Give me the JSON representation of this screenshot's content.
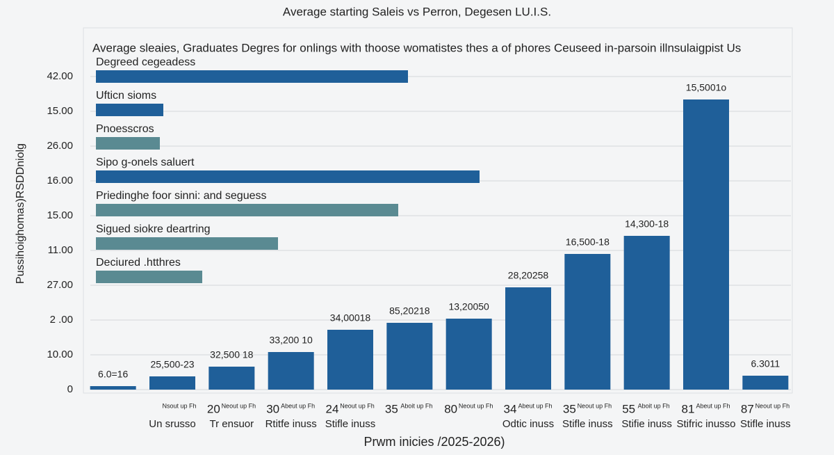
{
  "chart_data": [
    {
      "type": "bar",
      "title": "Average starting Saleis vs Perron, Degesen LU.I.S.",
      "subtitle": "Average sleaies, Graduates Degres for onlings with thoose womatistes thes a of phores Ceuseed in-parsoin illnsulaigpist Us",
      "y_label": "Pussihoighomas)RSDDniolg",
      "x_label": "Prwm inicies /2025-2026)",
      "categories": [
        null,
        "Un srusso",
        "Tr ensuor",
        "Rtitfe inuss",
        "Stifle inuss",
        null,
        null,
        "Odtic inuss",
        "Stifle inuss",
        "Stifie inuss",
        "Stifric inusso",
        "Stifle inuss"
      ],
      "x_tick_numbers": [
        null,
        null,
        "20",
        "30",
        "24",
        "35",
        "80",
        "34",
        "35",
        "55",
        "81",
        "87"
      ],
      "x_tick_notes": [
        null,
        "Nsout up Fh",
        "Neout up Fh",
        "Abeut up Fh",
        "Neout up Fh",
        "Aboit up Fh",
        "Neout up Fh",
        "Abeut up Fh",
        "Neout up Fh",
        "Aboit up Fh",
        "Abeut up Fh",
        "Neout up Fh"
      ],
      "values": [
        0.1,
        0.38,
        0.66,
        1.08,
        1.72,
        1.92,
        2.04,
        2.94,
        3.9,
        4.42,
        8.34,
        0.4
      ],
      "annotations": [
        "6.0=16",
        "25,500-23",
        "32,500 18",
        "33,200 10",
        "34,00018",
        "85,20218",
        "13,20050",
        "28,20258",
        "16,500-18",
        "14,300-18",
        "15,5001o",
        "6.3011"
      ],
      "color": "#1f5f99",
      "ylim": [
        0,
        9
      ],
      "yticks": [
        {
          "value": 0,
          "label": "0"
        },
        {
          "value": 1,
          "label": "10.00"
        },
        {
          "value": 2,
          "label": "2 .00"
        },
        {
          "value": 3,
          "label": "27.00"
        },
        {
          "value": 4,
          "label": "11.00"
        },
        {
          "value": 5,
          "label": "15.00"
        },
        {
          "value": 6,
          "label": "16.00"
        },
        {
          "value": 7,
          "label": "26.00"
        },
        {
          "value": 8,
          "label": "15.00"
        },
        {
          "value": 9,
          "label": "42.00"
        }
      ],
      "grid": true
    },
    {
      "type": "barh",
      "categories": [
        "Degreed cegeadess",
        "Ufticn sioms",
        "Pnoesscros",
        "Sipo g-onels saluert",
        "Priedinghe foor sinni: and seguess",
        "Sigued siokre deartring",
        "Deciured .htthres"
      ],
      "values": [
        44.9,
        9.7,
        9.2,
        55.2,
        43.5,
        26.2,
        15.3
      ],
      "colors": [
        "#1f5f99",
        "#1f5f99",
        "#5a8a92",
        "#1f5f99",
        "#5a8a92",
        "#5a8a92",
        "#5a8a92"
      ],
      "xlim": [
        0,
        100
      ]
    }
  ]
}
